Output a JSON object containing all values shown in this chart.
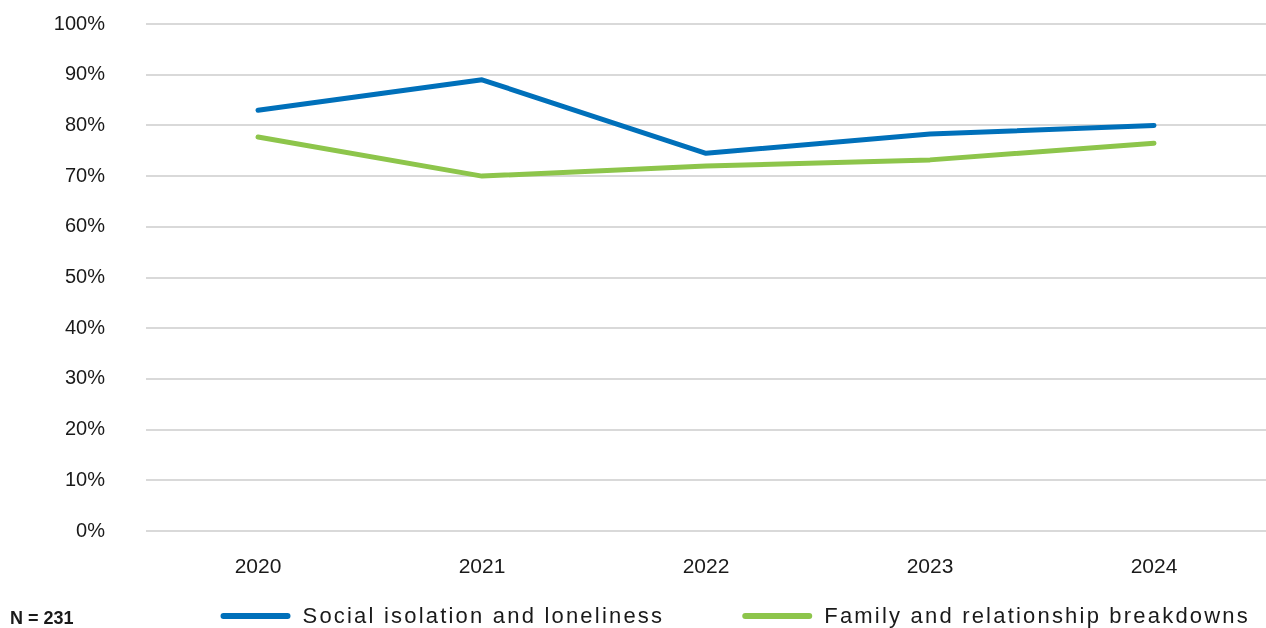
{
  "chart_data": {
    "type": "line",
    "categories": [
      "2020",
      "2021",
      "2022",
      "2023",
      "2024"
    ],
    "series": [
      {
        "name": "Social isolation and loneliness",
        "color": "#0070ba",
        "values": [
          83,
          89,
          74.5,
          78.3,
          80
        ]
      },
      {
        "name": "Family and relationship breakdowns",
        "color": "#8dc54b",
        "values": [
          77.7,
          70,
          72,
          73.2,
          76.5
        ]
      }
    ],
    "ylim": [
      0,
      100
    ],
    "yticks": [
      {
        "value": 0,
        "label": "0%"
      },
      {
        "value": 10,
        "label": "10%"
      },
      {
        "value": 20,
        "label": "20%"
      },
      {
        "value": 30,
        "label": "30%"
      },
      {
        "value": 40,
        "label": "40%"
      },
      {
        "value": 50,
        "label": "50%"
      },
      {
        "value": 60,
        "label": "60%"
      },
      {
        "value": 70,
        "label": "70%"
      },
      {
        "value": 80,
        "label": "80%"
      },
      {
        "value": 90,
        "label": "90%"
      },
      {
        "value": 100,
        "label": "100%"
      }
    ],
    "grid": "y",
    "legend": "bottom",
    "marker": "none",
    "line_style": "solid",
    "annotations": [
      "N = 231"
    ]
  }
}
